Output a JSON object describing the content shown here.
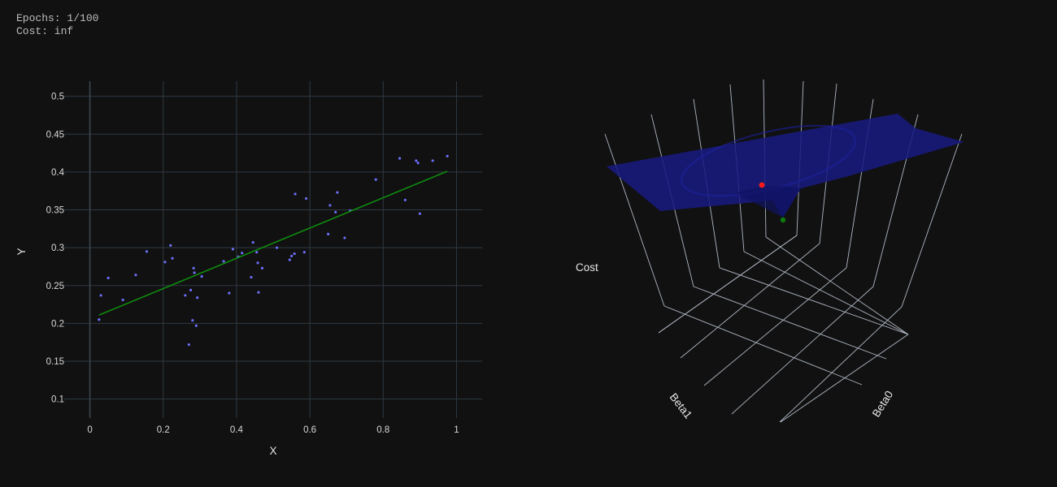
{
  "status": {
    "epochs_text": "Epochs: 1/100",
    "cost_text": "Cost: inf"
  },
  "colors": {
    "background": "#111111",
    "points": "#6a6ef5",
    "fit_line": "#0f8a0f",
    "surface": "#181a7e",
    "current_point": "#ff1a1a",
    "optimum_point": "#0b7a0b"
  },
  "chart_data": [
    {
      "type": "scatter",
      "xlabel": "X",
      "ylabel": "Y",
      "xlim": [
        -0.07,
        1.07
      ],
      "ylim": [
        0.075,
        0.52
      ],
      "x_ticks": [
        0,
        0.2,
        0.4,
        0.6,
        0.8,
        1
      ],
      "x_tick_labels": [
        "0",
        "0.2",
        "0.4",
        "0.6",
        "0.8",
        "1"
      ],
      "y_ticks": [
        0.1,
        0.15,
        0.2,
        0.25,
        0.3,
        0.35,
        0.4,
        0.45,
        0.5
      ],
      "y_tick_labels": [
        "0.1",
        "0.15",
        "0.2",
        "0.25",
        "0.3",
        "0.35",
        "0.4",
        "0.45",
        "0.5"
      ],
      "grid": true,
      "points": [
        [
          0.025,
          0.205
        ],
        [
          0.03,
          0.237
        ],
        [
          0.05,
          0.26
        ],
        [
          0.09,
          0.231
        ],
        [
          0.125,
          0.264
        ],
        [
          0.155,
          0.295
        ],
        [
          0.205,
          0.281
        ],
        [
          0.22,
          0.303
        ],
        [
          0.225,
          0.286
        ],
        [
          0.26,
          0.237
        ],
        [
          0.27,
          0.172
        ],
        [
          0.275,
          0.244
        ],
        [
          0.28,
          0.204
        ],
        [
          0.283,
          0.273
        ],
        [
          0.285,
          0.267
        ],
        [
          0.29,
          0.197
        ],
        [
          0.293,
          0.234
        ],
        [
          0.305,
          0.262
        ],
        [
          0.365,
          0.282
        ],
        [
          0.38,
          0.24
        ],
        [
          0.39,
          0.298
        ],
        [
          0.405,
          0.288
        ],
        [
          0.415,
          0.293
        ],
        [
          0.44,
          0.261
        ],
        [
          0.445,
          0.307
        ],
        [
          0.455,
          0.294
        ],
        [
          0.458,
          0.28
        ],
        [
          0.46,
          0.241
        ],
        [
          0.47,
          0.273
        ],
        [
          0.51,
          0.3
        ],
        [
          0.545,
          0.284
        ],
        [
          0.55,
          0.289
        ],
        [
          0.558,
          0.292
        ],
        [
          0.56,
          0.371
        ],
        [
          0.585,
          0.294
        ],
        [
          0.59,
          0.365
        ],
        [
          0.65,
          0.318
        ],
        [
          0.655,
          0.356
        ],
        [
          0.67,
          0.347
        ],
        [
          0.675,
          0.373
        ],
        [
          0.695,
          0.313
        ],
        [
          0.71,
          0.349
        ],
        [
          0.78,
          0.39
        ],
        [
          0.845,
          0.418
        ],
        [
          0.86,
          0.363
        ],
        [
          0.89,
          0.415
        ],
        [
          0.895,
          0.412
        ],
        [
          0.9,
          0.345
        ],
        [
          0.935,
          0.415
        ],
        [
          0.975,
          0.421
        ]
      ],
      "fit_line": [
        [
          0.025,
          0.211
        ],
        [
          0.975,
          0.401
        ]
      ]
    },
    {
      "type": "surface3d",
      "axis_labels": {
        "z": "Cost",
        "x": "Beta1",
        "y": "Beta0"
      },
      "markers": [
        "current",
        "optimum"
      ]
    }
  ]
}
